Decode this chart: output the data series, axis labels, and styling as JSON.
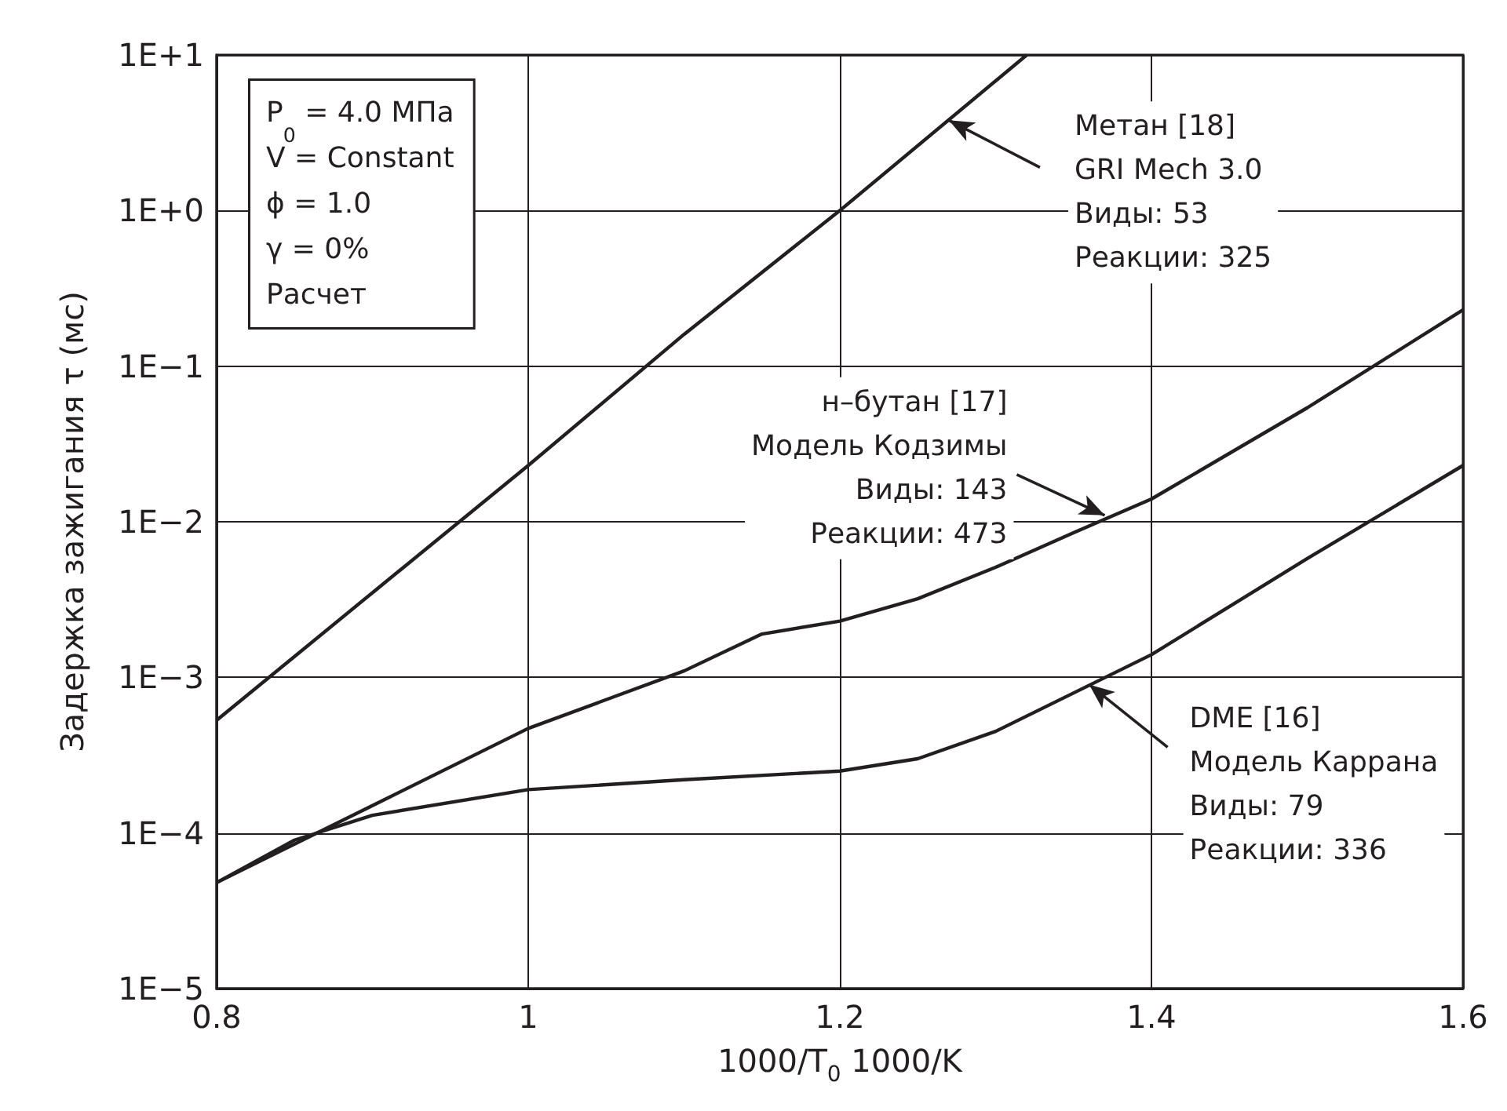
{
  "chart_data": {
    "type": "line",
    "xlabel": "1000/T$_{0}$ 1000/K",
    "ylabel": "Задержка зажигания τ (мс)",
    "log": "y",
    "grid": true,
    "marker": "none",
    "line_style": "solid",
    "xlim": [
      0.8,
      1.6
    ],
    "xticks": [
      0.8,
      1,
      1.2,
      1.4,
      1.6
    ],
    "ylim": [
      1e-05,
      10
    ],
    "yticks": [
      {
        "value": 1e-05,
        "label": "1E−5"
      },
      {
        "value": 0.0001,
        "label": "1E−4"
      },
      {
        "value": 0.001,
        "label": "1E−3"
      },
      {
        "value": 0.01,
        "label": "1E−2"
      },
      {
        "value": 0.1,
        "label": "1E−1"
      },
      {
        "value": 1,
        "label": "1E+0"
      },
      {
        "value": 10,
        "label": "1E+1"
      }
    ],
    "series": [
      {
        "color": "#231f20",
        "x": [
          0.8,
          0.9,
          1.0,
          1.1,
          1.2,
          1.32
        ],
        "values": [
          0.00053,
          0.0035,
          0.023,
          0.16,
          1.0,
          10
        ]
      },
      {
        "color": "#231f20",
        "x": [
          0.8,
          0.9,
          1.0,
          1.1,
          1.15,
          1.2,
          1.25,
          1.3,
          1.35,
          1.4,
          1.5,
          1.6
        ],
        "values": [
          4.8e-05,
          0.00015,
          0.00047,
          0.0011,
          0.0019,
          0.0023,
          0.0032,
          0.0051,
          0.0085,
          0.014,
          0.054,
          0.23
        ]
      },
      {
        "color": "#231f20",
        "x": [
          0.8,
          0.85,
          0.9,
          1.0,
          1.1,
          1.2,
          1.25,
          1.3,
          1.4,
          1.5,
          1.6
        ],
        "values": [
          4.8e-05,
          9e-05,
          0.00013,
          0.00019,
          0.00022,
          0.00025,
          0.0003,
          0.00045,
          0.0014,
          0.0058,
          0.023
        ]
      }
    ],
    "annotations": [
      "P$_{0}$ = 4.0 МПа\nV = Constant\nϕ = 1.0\nγ = 0%\nРасчет",
      {
        "text": "Метан [18]\nGRI Mech 3.0\nВиды: 53\nРеакции: 325",
        "x": 1.27,
        "y": 3.8
      },
      {
        "text": "н–бутан [17]\nМодель Кодзимы\nВиды: 143\nРеакции: 473",
        "x": 1.37,
        "y": 0.011
      },
      {
        "text": "DME [16]\nМодель Каррана\nВиды: 79\nРеакции: 336",
        "x": 1.36,
        "y": 0.0009
      }
    ]
  }
}
